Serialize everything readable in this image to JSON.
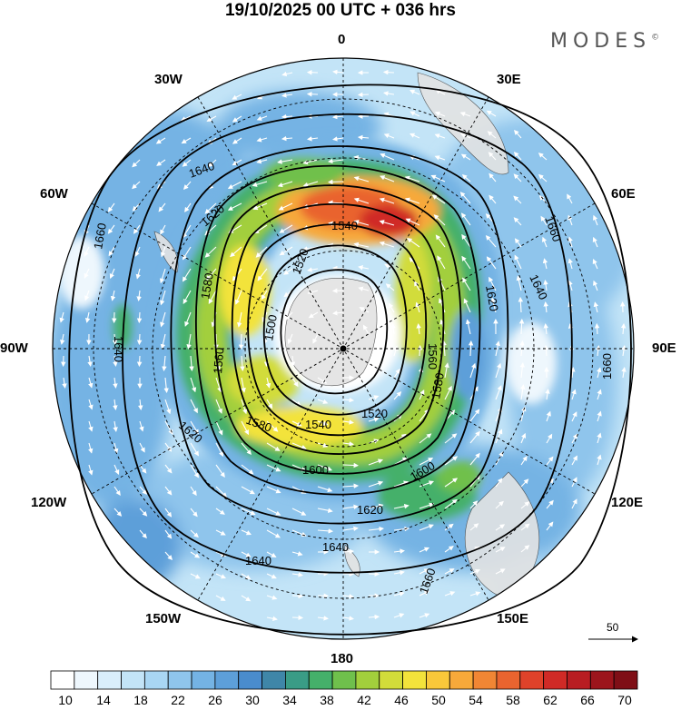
{
  "header": {
    "title": "19/10/2025  00 UTC  + 036 hrs",
    "brand": "MODES",
    "brand_mark": "©"
  },
  "map": {
    "projection": "polar stereographic (South Pole)",
    "longitude_labels": [
      "0",
      "30E",
      "60E",
      "90E",
      "120E",
      "150E",
      "180",
      "150W",
      "120W",
      "90W",
      "60W",
      "30W"
    ],
    "contour_labels": [
      "1500",
      "1520",
      "1540",
      "1560",
      "1580",
      "1600",
      "1620",
      "1640",
      "1660"
    ],
    "vector_reference": {
      "label": "50"
    },
    "colors": {
      "land": "#e6e6e6",
      "background_low_wind": "#ffffff",
      "contour_line": "#000000",
      "wind_vectors": "#ffffff"
    }
  },
  "colorbar": {
    "tick_labels": [
      "10",
      "14",
      "18",
      "22",
      "26",
      "30",
      "34",
      "38",
      "42",
      "46",
      "50",
      "54",
      "58",
      "62",
      "66",
      "70"
    ],
    "colors": [
      "#ffffff",
      "#eef7fd",
      "#d9eefb",
      "#c3e4f7",
      "#a9d6f3",
      "#8fc5ec",
      "#74b3e4",
      "#5d9fd9",
      "#4a8ccd",
      "#3f86a8",
      "#3a9c86",
      "#45b06a",
      "#6fc04c",
      "#a2cf3c",
      "#d2dc3a",
      "#f3e33b",
      "#f9c83a",
      "#f7a93a",
      "#f18634",
      "#e9642f",
      "#df422a",
      "#d02a26",
      "#b81d22",
      "#9c151c",
      "#7f0f16"
    ]
  }
}
